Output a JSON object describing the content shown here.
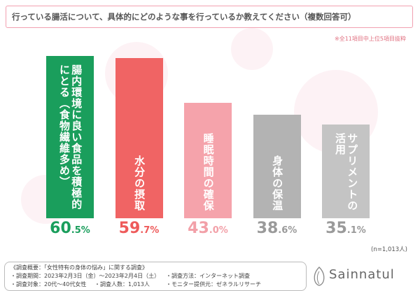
{
  "chart_data": {
    "type": "bar",
    "title": "行っている腸活について、具体的にどのような事を行っているか教えてください（複数回答可）",
    "note": "※全11項目中上位5項目抜粋",
    "sample_size": "(n=1,013人)",
    "categories": [
      "腸内環境に良い食品を積極的にとる（食物繊維多め）",
      "水分の摂取",
      "睡眠時間の確保",
      "身体の保温",
      "サプリメントの活用"
    ],
    "values": [
      60.5,
      59.7,
      43.0,
      38.6,
      35.1
    ],
    "value_labels": [
      "60.5%",
      "59.7%",
      "43.0%",
      "38.6%",
      "35.1%"
    ],
    "colors": [
      "#1a9e5c",
      "#f06464",
      "#f5a3ab",
      "#b3b3b3",
      "#c4c4c4"
    ],
    "label_colors": [
      "#1a9e5c",
      "#ee5a5a",
      "#f2a0a8",
      "#9a9a9a",
      "#9a9a9a"
    ]
  },
  "footer": {
    "summary": "《調査概要：「女性特有の身体の悩み」に関する調査》",
    "period": "・調査期間：2023年2月3日（金）～2023年2月4日（土）",
    "method": "・調査方法：インターネット調査",
    "target": "・調査対象：20代～40代女性",
    "count": "・調査人数：1,013人",
    "provider": "・モニター提供元：ゼネラルリサーチ",
    "logo": "Sainnatul"
  }
}
